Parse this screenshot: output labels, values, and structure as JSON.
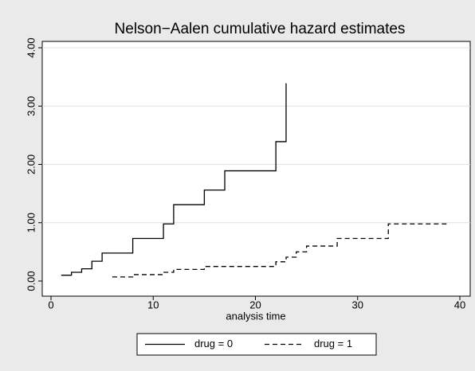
{
  "chart_data": {
    "type": "step",
    "title": "Nelson−Aalen cumulative hazard estimates",
    "x_label": "analysis time",
    "xlim": [
      0,
      40
    ],
    "xticks": [
      0,
      10,
      20,
      30,
      40
    ],
    "ylim": [
      0,
      4
    ],
    "yticks": [
      {
        "value": 0,
        "label": "0.00"
      },
      {
        "value": 1,
        "label": "1.00"
      },
      {
        "value": 2,
        "label": "2.00"
      },
      {
        "value": 3,
        "label": "3.00"
      },
      {
        "value": 4,
        "label": "4.00"
      }
    ],
    "grid": true,
    "legend": "bottom",
    "series": [
      {
        "name": "drug = 0",
        "color": "#000000",
        "dash": "solid",
        "x": [
          1,
          2,
          3,
          4,
          5,
          8,
          11,
          12,
          15,
          17,
          22,
          23
        ],
        "values": [
          0.1,
          0.15,
          0.21,
          0.34,
          0.48,
          0.73,
          0.98,
          1.31,
          1.56,
          1.89,
          2.39,
          3.39
        ]
      },
      {
        "name": "drug = 1",
        "color": "#000000",
        "dash": "dashed",
        "x": [
          6,
          8,
          11,
          12,
          15,
          22,
          23,
          24,
          25,
          28,
          33,
          39
        ],
        "values": [
          0.07,
          0.11,
          0.15,
          0.2,
          0.25,
          0.33,
          0.41,
          0.5,
          0.6,
          0.73,
          0.98,
          0.98
        ]
      }
    ]
  }
}
